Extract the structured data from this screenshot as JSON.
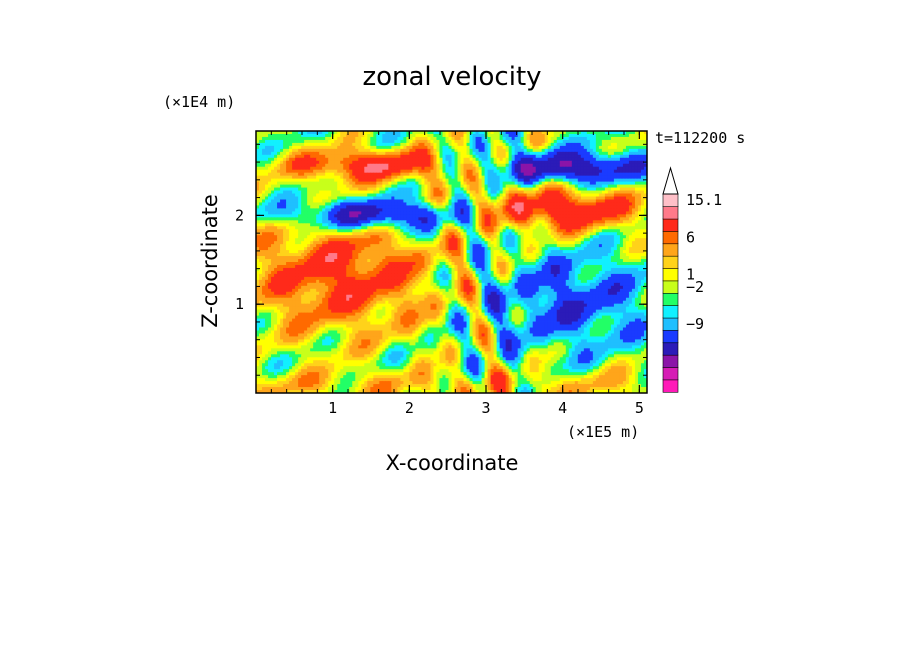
{
  "chart_data": {
    "type": "heatmap",
    "title": "zonal velocity",
    "xlabel": "X-coordinate",
    "ylabel": "Z-coordinate",
    "x_unit": "(×1E5 m)",
    "y_unit": "(×1E4 m)",
    "time_label": "t=112200 s",
    "x_ticks": [
      "1",
      "2",
      "3",
      "4",
      "5"
    ],
    "y_ticks": [
      "1",
      "2"
    ],
    "xlim": [
      0,
      5.1
    ],
    "ylim": [
      0,
      2.95
    ],
    "colorbar": {
      "labels": [
        "15.1",
        "6",
        "1",
        "−2",
        "−9"
      ],
      "colors": [
        "#ff1ab8",
        "#d61cb5",
        "#8b14a8",
        "#2b1bb8",
        "#1a3bff",
        "#1fbfff",
        "#11f0ff",
        "#22ff66",
        "#c8ff1a",
        "#ffff00",
        "#ffd21a",
        "#ffa51a",
        "#ff6a00",
        "#ff2a1a",
        "#ff7a8a",
        "#ffc0c8"
      ]
    }
  }
}
